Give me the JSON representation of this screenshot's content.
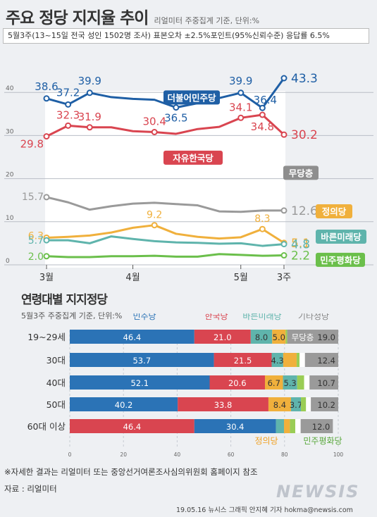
{
  "title": "주요 정당 지지율 추이",
  "source_note": "리얼미터 주중집계 기준, 단위:%",
  "survey_info": "5월3주(13~15일 전국 성인 1502명 조사) 표본오차 ±2.5%포인트(95%신뢰수준) 응답률 6.5%",
  "trend_chart": {
    "type": "line",
    "x_labels": [
      "3월",
      "4월",
      "5월",
      "3주"
    ],
    "y_ticks": [
      "40",
      "30",
      "20",
      "10",
      "0"
    ],
    "ylim": [
      0,
      50
    ],
    "series": [
      {
        "name": "더불어민주당",
        "color": "#1f5fa5",
        "values": [
          38.6,
          37.2,
          39.9,
          38.9,
          38.5,
          38.3,
          36.5,
          37.5,
          38.7,
          39.9,
          36.4,
          43.3
        ],
        "labels": {
          "0": "38.6",
          "1": "37.2",
          "2": "39.9",
          "6": "36.5",
          "9": "39.9",
          "10": "36.4",
          "11": "43.3"
        }
      },
      {
        "name": "자유한국당",
        "color": "#d94550",
        "values": [
          29.8,
          32.3,
          31.9,
          31.9,
          31.0,
          30.8,
          30.4,
          31.5,
          32.0,
          34.1,
          34.8,
          30.2
        ],
        "labels": {
          "0": "29.8",
          "1": "32.3",
          "2": "31.9",
          "5": "30.4",
          "9": "34.1",
          "10": "34.8",
          "11": "30.2"
        }
      },
      {
        "name": "무당층",
        "color": "#9a9a9a",
        "values": [
          15.7,
          14.5,
          12.8,
          13.6,
          14.2,
          14.4,
          14.1,
          13.8,
          12.4,
          12.3,
          12.6,
          12.6
        ],
        "labels": {
          "0": "15.7",
          "11": "12.6"
        }
      },
      {
        "name": "정의당",
        "color": "#f0b03c",
        "values": [
          6.3,
          6.5,
          6.8,
          7.5,
          8.6,
          9.2,
          7.2,
          6.5,
          6.1,
          6.4,
          8.3,
          5.1
        ],
        "labels": {
          "0": "6.3",
          "5": "9.2",
          "10": "8.3",
          "11": "5.1"
        }
      },
      {
        "name": "바른미래당",
        "color": "#5fb4ac",
        "values": [
          5.7,
          5.7,
          5.0,
          6.6,
          6.0,
          5.5,
          5.2,
          5.1,
          4.9,
          5.0,
          4.4,
          4.8
        ],
        "labels": {
          "0": "5.7",
          "11": "4.8"
        }
      },
      {
        "name": "민주평화당",
        "color": "#6bbf4b",
        "values": [
          2.0,
          1.8,
          1.8,
          2.0,
          2.0,
          2.1,
          1.9,
          1.9,
          2.5,
          2.3,
          2.1,
          2.2
        ],
        "labels": {
          "0": "2.0",
          "11": "2.2"
        }
      }
    ]
  },
  "age_title": "연령대별 지지정당",
  "age_subtitle": "5월3주 주중집계 기준, 단위:%",
  "age_chart": {
    "type": "bar",
    "orientation": "horizontal-stacked",
    "xlim": [
      0,
      100
    ],
    "x_ticks": [
      "0",
      "20",
      "40",
      "60",
      "80",
      "100"
    ],
    "legend_top": [
      {
        "label": "민주당",
        "color": "#2b73b6"
      },
      {
        "label": "한국당",
        "color": "#d94550"
      },
      {
        "label": "바른미래당",
        "color": "#5fb4ac"
      },
      {
        "label": "기타정당",
        "color": "#888888"
      }
    ],
    "legend_bottom": [
      {
        "label": "정의당",
        "color": "#f0a020"
      },
      {
        "label": "민주평화당",
        "color": "#5aa83c"
      }
    ],
    "inline_label": "무당층",
    "rows": [
      {
        "category": "19~29세",
        "segments": [
          {
            "party": "민주당",
            "value": 46.4,
            "label": "46.4",
            "color": "#2b73b6"
          },
          {
            "party": "한국당",
            "value": 21.0,
            "label": "21.0",
            "color": "#d94550"
          },
          {
            "party": "바른미래당",
            "value": 8.0,
            "label": "8.0",
            "color": "#5fb4ac"
          },
          {
            "party": "정의당",
            "value": 5.0,
            "label": "5.0",
            "color": "#f0b03c"
          },
          {
            "party": "민주평화당",
            "value": 0.6,
            "label": "",
            "color": "#9acd55"
          },
          {
            "party": "기타정당",
            "value": 0.0,
            "label": "",
            "color": "#ffffff"
          },
          {
            "party": "무당층",
            "value": 19.0,
            "label": "19.0",
            "color": "#9a9a9a"
          }
        ]
      },
      {
        "category": "30대",
        "segments": [
          {
            "party": "민주당",
            "value": 53.7,
            "label": "53.7",
            "color": "#2b73b6"
          },
          {
            "party": "한국당",
            "value": 21.5,
            "label": "21.5",
            "color": "#d94550"
          },
          {
            "party": "바른미래당",
            "value": 4.3,
            "label": "4.3",
            "color": "#5fb4ac"
          },
          {
            "party": "정의당",
            "value": 5.0,
            "label": "",
            "color": "#f0b03c"
          },
          {
            "party": "민주평화당",
            "value": 1.1,
            "label": "",
            "color": "#9acd55"
          },
          {
            "party": "기타정당",
            "value": 2.0,
            "label": "",
            "color": "#ffffff"
          },
          {
            "party": "무당층",
            "value": 12.4,
            "label": "12.4",
            "color": "#9a9a9a"
          }
        ]
      },
      {
        "category": "40대",
        "segments": [
          {
            "party": "민주당",
            "value": 52.1,
            "label": "52.1",
            "color": "#2b73b6"
          },
          {
            "party": "한국당",
            "value": 20.6,
            "label": "20.6",
            "color": "#d94550"
          },
          {
            "party": "정의당",
            "value": 6.7,
            "label": "6.7",
            "color": "#f0b03c"
          },
          {
            "party": "바른미래당",
            "value": 5.3,
            "label": "5.3",
            "color": "#5fb4ac"
          },
          {
            "party": "민주평화당",
            "value": 2.6,
            "label": "",
            "color": "#9acd55"
          },
          {
            "party": "기타정당",
            "value": 2.0,
            "label": "",
            "color": "#ffffff"
          },
          {
            "party": "무당층",
            "value": 10.7,
            "label": "10.7",
            "color": "#9a9a9a"
          }
        ]
      },
      {
        "category": "50대",
        "segments": [
          {
            "party": "민주당",
            "value": 40.2,
            "label": "40.2",
            "color": "#2b73b6"
          },
          {
            "party": "한국당",
            "value": 33.8,
            "label": "33.8",
            "color": "#d94550"
          },
          {
            "party": "정의당",
            "value": 8.4,
            "label": "8.4",
            "color": "#f0b03c"
          },
          {
            "party": "바른미래당",
            "value": 3.7,
            "label": "3.7",
            "color": "#5fb4ac"
          },
          {
            "party": "민주평화당",
            "value": 1.9,
            "label": "",
            "color": "#9acd55"
          },
          {
            "party": "기타정당",
            "value": 1.8,
            "label": "",
            "color": "#ffffff"
          },
          {
            "party": "무당층",
            "value": 10.2,
            "label": "10.2",
            "color": "#9a9a9a"
          }
        ]
      },
      {
        "category": "60대 이상",
        "segments": [
          {
            "party": "한국당",
            "value": 46.4,
            "label": "46.4",
            "color": "#d94550"
          },
          {
            "party": "민주당",
            "value": 30.4,
            "label": "30.4",
            "color": "#2b73b6"
          },
          {
            "party": "바른미래당",
            "value": 3.0,
            "label": "",
            "color": "#5fb4ac"
          },
          {
            "party": "정의당",
            "value": 2.2,
            "label": "",
            "color": "#f0b03c"
          },
          {
            "party": "민주평화당",
            "value": 2.0,
            "label": "",
            "color": "#9acd55"
          },
          {
            "party": "기타정당",
            "value": 2.0,
            "label": "",
            "color": "#ffffff"
          },
          {
            "party": "무당층",
            "value": 12.0,
            "label": "12.0",
            "color": "#9a9a9a"
          }
        ]
      }
    ]
  },
  "footnote": "※자세한 결과는 리얼미터 또는 중앙선거여론조사심의위원회 홈페이지 참조",
  "source": "자료 : 리얼미터",
  "credit": "19.05.16 뉴시스 그래픽 안지혜 기자 hokma@newsis.com",
  "logo": "NEWSIS"
}
